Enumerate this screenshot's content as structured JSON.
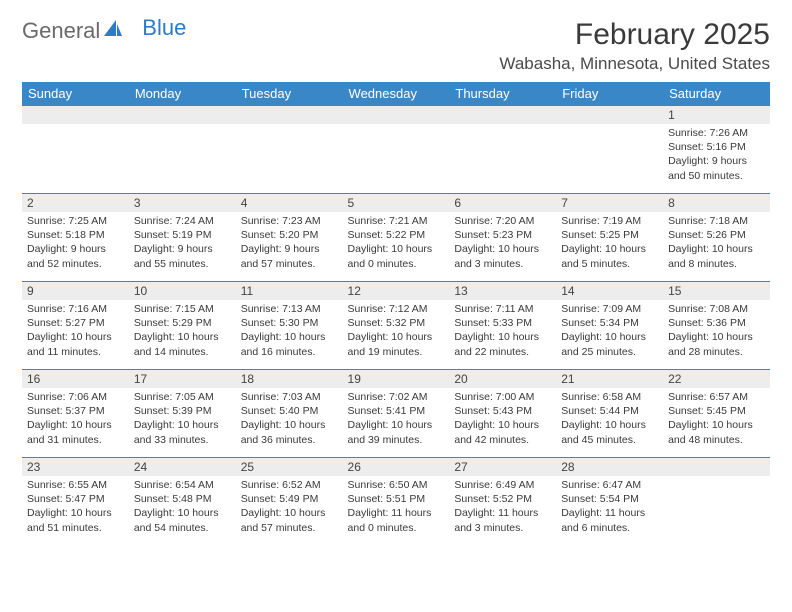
{
  "logo": {
    "text1": "General",
    "text2": "Blue"
  },
  "title": "February 2025",
  "location": "Wabasha, Minnesota, United States",
  "colors": {
    "header_bg": "#3a87c8",
    "header_text": "#ffffff",
    "daynum_bg": "#ededed",
    "border": "#3a87c8",
    "text": "#3a3a3a",
    "logo_gray": "#6a6a6a",
    "logo_blue": "#2d7bc4",
    "page_bg": "#ffffff"
  },
  "day_headers": [
    "Sunday",
    "Monday",
    "Tuesday",
    "Wednesday",
    "Thursday",
    "Friday",
    "Saturday"
  ],
  "weeks": [
    [
      null,
      null,
      null,
      null,
      null,
      null,
      {
        "day": "1",
        "sunrise": "Sunrise: 7:26 AM",
        "sunset": "Sunset: 5:16 PM",
        "daylight1": "Daylight: 9 hours",
        "daylight2": "and 50 minutes."
      }
    ],
    [
      {
        "day": "2",
        "sunrise": "Sunrise: 7:25 AM",
        "sunset": "Sunset: 5:18 PM",
        "daylight1": "Daylight: 9 hours",
        "daylight2": "and 52 minutes."
      },
      {
        "day": "3",
        "sunrise": "Sunrise: 7:24 AM",
        "sunset": "Sunset: 5:19 PM",
        "daylight1": "Daylight: 9 hours",
        "daylight2": "and 55 minutes."
      },
      {
        "day": "4",
        "sunrise": "Sunrise: 7:23 AM",
        "sunset": "Sunset: 5:20 PM",
        "daylight1": "Daylight: 9 hours",
        "daylight2": "and 57 minutes."
      },
      {
        "day": "5",
        "sunrise": "Sunrise: 7:21 AM",
        "sunset": "Sunset: 5:22 PM",
        "daylight1": "Daylight: 10 hours",
        "daylight2": "and 0 minutes."
      },
      {
        "day": "6",
        "sunrise": "Sunrise: 7:20 AM",
        "sunset": "Sunset: 5:23 PM",
        "daylight1": "Daylight: 10 hours",
        "daylight2": "and 3 minutes."
      },
      {
        "day": "7",
        "sunrise": "Sunrise: 7:19 AM",
        "sunset": "Sunset: 5:25 PM",
        "daylight1": "Daylight: 10 hours",
        "daylight2": "and 5 minutes."
      },
      {
        "day": "8",
        "sunrise": "Sunrise: 7:18 AM",
        "sunset": "Sunset: 5:26 PM",
        "daylight1": "Daylight: 10 hours",
        "daylight2": "and 8 minutes."
      }
    ],
    [
      {
        "day": "9",
        "sunrise": "Sunrise: 7:16 AM",
        "sunset": "Sunset: 5:27 PM",
        "daylight1": "Daylight: 10 hours",
        "daylight2": "and 11 minutes."
      },
      {
        "day": "10",
        "sunrise": "Sunrise: 7:15 AM",
        "sunset": "Sunset: 5:29 PM",
        "daylight1": "Daylight: 10 hours",
        "daylight2": "and 14 minutes."
      },
      {
        "day": "11",
        "sunrise": "Sunrise: 7:13 AM",
        "sunset": "Sunset: 5:30 PM",
        "daylight1": "Daylight: 10 hours",
        "daylight2": "and 16 minutes."
      },
      {
        "day": "12",
        "sunrise": "Sunrise: 7:12 AM",
        "sunset": "Sunset: 5:32 PM",
        "daylight1": "Daylight: 10 hours",
        "daylight2": "and 19 minutes."
      },
      {
        "day": "13",
        "sunrise": "Sunrise: 7:11 AM",
        "sunset": "Sunset: 5:33 PM",
        "daylight1": "Daylight: 10 hours",
        "daylight2": "and 22 minutes."
      },
      {
        "day": "14",
        "sunrise": "Sunrise: 7:09 AM",
        "sunset": "Sunset: 5:34 PM",
        "daylight1": "Daylight: 10 hours",
        "daylight2": "and 25 minutes."
      },
      {
        "day": "15",
        "sunrise": "Sunrise: 7:08 AM",
        "sunset": "Sunset: 5:36 PM",
        "daylight1": "Daylight: 10 hours",
        "daylight2": "and 28 minutes."
      }
    ],
    [
      {
        "day": "16",
        "sunrise": "Sunrise: 7:06 AM",
        "sunset": "Sunset: 5:37 PM",
        "daylight1": "Daylight: 10 hours",
        "daylight2": "and 31 minutes."
      },
      {
        "day": "17",
        "sunrise": "Sunrise: 7:05 AM",
        "sunset": "Sunset: 5:39 PM",
        "daylight1": "Daylight: 10 hours",
        "daylight2": "and 33 minutes."
      },
      {
        "day": "18",
        "sunrise": "Sunrise: 7:03 AM",
        "sunset": "Sunset: 5:40 PM",
        "daylight1": "Daylight: 10 hours",
        "daylight2": "and 36 minutes."
      },
      {
        "day": "19",
        "sunrise": "Sunrise: 7:02 AM",
        "sunset": "Sunset: 5:41 PM",
        "daylight1": "Daylight: 10 hours",
        "daylight2": "and 39 minutes."
      },
      {
        "day": "20",
        "sunrise": "Sunrise: 7:00 AM",
        "sunset": "Sunset: 5:43 PM",
        "daylight1": "Daylight: 10 hours",
        "daylight2": "and 42 minutes."
      },
      {
        "day": "21",
        "sunrise": "Sunrise: 6:58 AM",
        "sunset": "Sunset: 5:44 PM",
        "daylight1": "Daylight: 10 hours",
        "daylight2": "and 45 minutes."
      },
      {
        "day": "22",
        "sunrise": "Sunrise: 6:57 AM",
        "sunset": "Sunset: 5:45 PM",
        "daylight1": "Daylight: 10 hours",
        "daylight2": "and 48 minutes."
      }
    ],
    [
      {
        "day": "23",
        "sunrise": "Sunrise: 6:55 AM",
        "sunset": "Sunset: 5:47 PM",
        "daylight1": "Daylight: 10 hours",
        "daylight2": "and 51 minutes."
      },
      {
        "day": "24",
        "sunrise": "Sunrise: 6:54 AM",
        "sunset": "Sunset: 5:48 PM",
        "daylight1": "Daylight: 10 hours",
        "daylight2": "and 54 minutes."
      },
      {
        "day": "25",
        "sunrise": "Sunrise: 6:52 AM",
        "sunset": "Sunset: 5:49 PM",
        "daylight1": "Daylight: 10 hours",
        "daylight2": "and 57 minutes."
      },
      {
        "day": "26",
        "sunrise": "Sunrise: 6:50 AM",
        "sunset": "Sunset: 5:51 PM",
        "daylight1": "Daylight: 11 hours",
        "daylight2": "and 0 minutes."
      },
      {
        "day": "27",
        "sunrise": "Sunrise: 6:49 AM",
        "sunset": "Sunset: 5:52 PM",
        "daylight1": "Daylight: 11 hours",
        "daylight2": "and 3 minutes."
      },
      {
        "day": "28",
        "sunrise": "Sunrise: 6:47 AM",
        "sunset": "Sunset: 5:54 PM",
        "daylight1": "Daylight: 11 hours",
        "daylight2": "and 6 minutes."
      },
      null
    ]
  ]
}
